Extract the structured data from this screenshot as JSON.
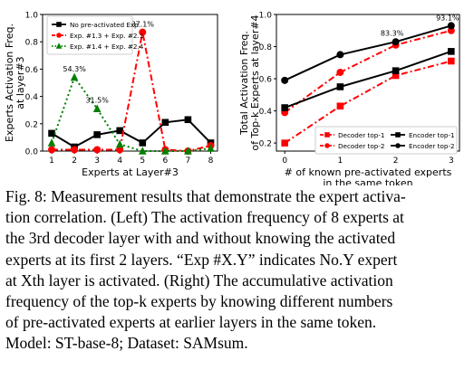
{
  "chart_data": [
    {
      "type": "line",
      "xlabel": "Experts at Layer#3",
      "ylabel": "Experts Activation Freq.\nat layer#3",
      "x": [
        1,
        2,
        3,
        4,
        5,
        6,
        7,
        8
      ],
      "xlim": [
        0.6,
        8.3
      ],
      "ylim": [
        0,
        1.0
      ],
      "yticks": [
        "0.0",
        "0.2",
        "0.4",
        "0.6",
        "0.8",
        "1.0"
      ],
      "legend_position": "top-left",
      "series": [
        {
          "name": "No pre-activated Exp.",
          "color": "#000000",
          "style": "solid",
          "marker": "square",
          "values": [
            0.13,
            0.03,
            0.12,
            0.15,
            0.06,
            0.21,
            0.23,
            0.06
          ]
        },
        {
          "name": "Exp. #1.3 + Exp. #2.1",
          "color": "#ff0000",
          "style": "dashdot",
          "marker": "circle",
          "values": [
            0.01,
            0.01,
            0.01,
            0.01,
            0.87,
            0.01,
            0.0,
            0.04
          ]
        },
        {
          "name": "Exp. #1.4 + Exp. #2.4",
          "color": "#008000",
          "style": "dotted",
          "marker": "triangle",
          "values": [
            0.06,
            0.54,
            0.31,
            0.05,
            0.0,
            0.0,
            0.0,
            0.02
          ]
        }
      ],
      "annotations": [
        {
          "text": "87.1%",
          "x": 5,
          "y": 0.87
        },
        {
          "text": "54.3%",
          "x": 2,
          "y": 0.543
        },
        {
          "text": "31.5%",
          "x": 3,
          "y": 0.315
        }
      ]
    },
    {
      "type": "line",
      "xlabel": "# of known pre-activated experts\nin the same token",
      "ylabel": "Total Activation Freq.\nof Top-k Experts at layer#4",
      "x": [
        0,
        1,
        2,
        3
      ],
      "xlim": [
        -0.15,
        3.15
      ],
      "ylim": [
        0.15,
        1.0
      ],
      "yticks": [
        "0.2",
        "0.4",
        "0.6",
        "0.8",
        "1.0"
      ],
      "legend_position": "bottom-right",
      "series": [
        {
          "name": "Decoder top-1",
          "color": "#ff0000",
          "style": "dashdot",
          "marker": "square",
          "values": [
            0.2,
            0.43,
            0.62,
            0.71
          ]
        },
        {
          "name": "Decoder top-2",
          "color": "#ff0000",
          "style": "dashdot",
          "marker": "circle",
          "values": [
            0.39,
            0.64,
            0.81,
            0.9
          ]
        },
        {
          "name": "Encoder top-1",
          "color": "#000000",
          "style": "solid",
          "marker": "square",
          "values": [
            0.42,
            0.55,
            0.65,
            0.77
          ]
        },
        {
          "name": "Encoder top-2",
          "color": "#000000",
          "style": "solid",
          "marker": "circle",
          "values": [
            0.59,
            0.75,
            0.83,
            0.93
          ]
        }
      ],
      "annotations": [
        {
          "text": "83.3%",
          "x": 2,
          "y": 0.833
        },
        {
          "text": "93.1%",
          "x": 3,
          "y": 0.931
        }
      ]
    }
  ],
  "caption": [
    "Fig. 8: Measurement results that demonstrate the expert activa-",
    "tion correlation. (Left) The activation frequency of 8 experts at",
    "the 3rd decoder layer with and without knowing the activated",
    "experts at its first 2 layers. “Exp #X.Y” indicates No.Y expert",
    "at Xth layer is activated. (Right) The accumulative activation",
    "frequency of the top-k experts by knowing different numbers",
    "of pre-activated experts at earlier layers in the same token.",
    "Model: ST-base-8; Dataset: SAMsum."
  ]
}
